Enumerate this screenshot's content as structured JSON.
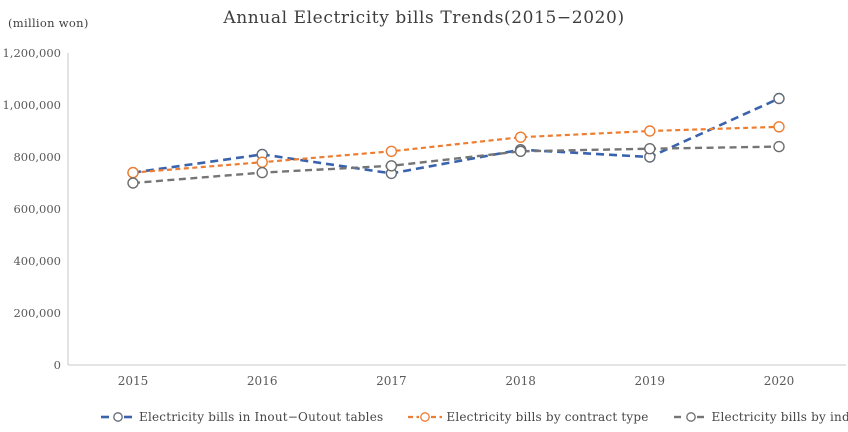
{
  "title": "Annual Electricity bills Trends(2015−2020)",
  "unit_label": "(million won)",
  "axis_color": "#c9c9c9",
  "tick_text_color": "#595959",
  "chart_data": {
    "type": "line",
    "title": "Annual Electricity bills Trends(2015−2020)",
    "ylabel": "(million won)",
    "xlabel": "",
    "x": [
      "2015",
      "2016",
      "2017",
      "2018",
      "2019",
      "2020"
    ],
    "series": [
      {
        "name": "Electricity bills in Inout−Outout tables",
        "color": "#3a63ae",
        "marker_outline": "#616a76",
        "dash": "8 5",
        "stroke_width": 2.6,
        "values": [
          740000,
          810000,
          737000,
          828000,
          800000,
          1025000
        ]
      },
      {
        "name": "Electricity bills by contract type",
        "color": "#ed7d31",
        "marker_outline": "#ed7d31",
        "dash": "5 3.5",
        "stroke_width": 2.2,
        "values": [
          740000,
          780000,
          822000,
          876000,
          900000,
          916000
        ]
      },
      {
        "name": "Electricity bills by industry classification",
        "color": "#757575",
        "marker_outline": "#6d6d6d",
        "dash": "7 4.5",
        "stroke_width": 2.4,
        "values": [
          700000,
          740000,
          766000,
          822000,
          832000,
          840000
        ]
      }
    ],
    "ylim": [
      0,
      1200000
    ],
    "ytick_step": 200000,
    "yticks": [
      "0",
      "200,000",
      "400,000",
      "600,000",
      "800,000",
      "1,000,000",
      "1,200,000"
    ],
    "grid": false,
    "legend_position": "bottom",
    "marker": "circle-open"
  }
}
